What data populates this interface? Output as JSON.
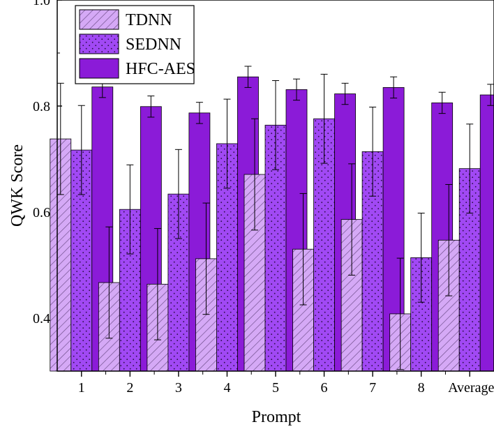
{
  "chart_data": {
    "type": "bar",
    "title": "",
    "xlabel": "Prompt",
    "ylabel": "QWK Score",
    "ylim": [
      0.3,
      1.0
    ],
    "yticks": [
      0.4,
      0.6,
      0.8,
      1.0
    ],
    "ytick_labels": [
      "0.4",
      "0.6",
      "0.8",
      "1.0"
    ],
    "grid": false,
    "legend_position": "top-left",
    "categories": [
      "1",
      "2",
      "3",
      "4",
      "5",
      "6",
      "7",
      "8",
      "Average"
    ],
    "series": [
      {
        "name": "TDNN",
        "pattern": "diagonal-hatch",
        "color": "#d5a9f6",
        "values": [
          0.738,
          0.467,
          0.464,
          0.512,
          0.671,
          0.53,
          0.586,
          0.408,
          0.547
        ],
        "errors": [
          0.105,
          0.105,
          0.105,
          0.105,
          0.105,
          0.105,
          0.105,
          0.105,
          0.105
        ]
      },
      {
        "name": "SEDNN",
        "pattern": "dots",
        "color": "#a149f4",
        "values": [
          0.717,
          0.605,
          0.634,
          0.729,
          0.764,
          0.776,
          0.714,
          0.514,
          0.682
        ],
        "errors": [
          0.084,
          0.084,
          0.084,
          0.084,
          0.084,
          0.084,
          0.084,
          0.084,
          0.084
        ]
      },
      {
        "name": "HFC-AES",
        "pattern": "solid",
        "color": "#8b1bd8",
        "values": [
          0.836,
          0.799,
          0.787,
          0.855,
          0.831,
          0.823,
          0.835,
          0.806,
          0.821
        ],
        "errors": [
          0.02,
          0.02,
          0.02,
          0.02,
          0.02,
          0.02,
          0.02,
          0.02,
          0.02
        ]
      }
    ]
  }
}
